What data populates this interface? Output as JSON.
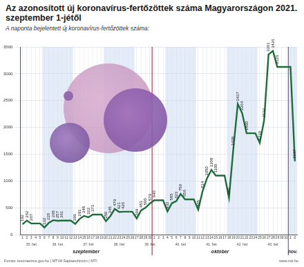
{
  "chart_data": {
    "type": "line",
    "title": "Az azonosított új koronavírus-fertőzöttek száma Magyarországon 2021. szeptember 1-jétől",
    "subtitle": "A naponta bejelentett új koronavírus-fertőzöttek száma:",
    "source": "Forrás: koronavirus.gov.hu | MTVA Sajtóarchívum | MTI",
    "credit": "www.mti.hu",
    "categories": [
      "1",
      "2",
      "3",
      "4",
      "5",
      "6",
      "7",
      "8",
      "9",
      "10",
      "11",
      "12",
      "13",
      "14",
      "15",
      "16",
      "17",
      "18",
      "19",
      "20",
      "21",
      "22",
      "23",
      "24",
      "25",
      "26",
      "27",
      "28",
      "29",
      "30",
      "1",
      "2",
      "3",
      "4",
      "5",
      "6",
      "7",
      "8",
      "9",
      "10",
      "11",
      "12",
      "13",
      "14",
      "15",
      "16",
      "17",
      "18",
      "19",
      "20",
      "21",
      "22",
      "23",
      "24",
      "25",
      "26",
      "27",
      "28",
      "29",
      "30",
      "31",
      "1",
      "2"
    ],
    "week_labels": [
      "35. hét",
      "35. hét",
      "35. hét",
      "35. hét",
      "35. hét",
      "36. hét",
      "36. hét",
      "36. hét",
      "36. hét",
      "36. hét",
      "36. hét",
      "36. hét",
      "37. hét",
      "37. hét",
      "37. hét",
      "37. hét",
      "37. hét",
      "37. hét",
      "37. hét",
      "38. hét",
      "38. hét",
      "38. hét",
      "38. hét",
      "38. hét",
      "38. hét",
      "38. hét",
      "39. hét",
      "39. hét",
      "39. hét",
      "39. hét",
      "39. hét",
      "39. hét",
      "39. hét",
      "40. hét",
      "40. hét",
      "40. hét",
      "40. hét",
      "40. hét",
      "40. hét",
      "40. hét",
      "41. hét",
      "41. hét",
      "41. hét",
      "41. hét",
      "41. hét",
      "41. hét",
      "41. hét",
      "42. hét",
      "42. hét",
      "42. hét",
      "42. hét",
      "42. hét",
      "42. hét",
      "42. hét",
      "43. hét",
      "43. hét",
      "43. hét",
      "43. hét",
      "43. hét",
      "43. hét",
      "43. hét",
      null,
      null
    ],
    "month_labels": [
      "szeptember",
      "szeptember",
      "szeptember",
      "szeptember",
      "szeptember",
      "szeptember",
      "szeptember",
      "szeptember",
      "szeptember",
      "szeptember",
      "szeptember",
      "szeptember",
      "szeptember",
      "szeptember",
      "szeptember",
      "szeptember",
      "szeptember",
      "szeptember",
      "szeptember",
      "szeptember",
      "szeptember",
      "szeptember",
      "szeptember",
      "szeptember",
      "szeptember",
      "szeptember",
      "szeptember",
      "szeptember",
      "szeptember",
      "szeptember",
      "október",
      "október",
      "október",
      "október",
      "október",
      "október",
      "október",
      "október",
      "október",
      "október",
      "október",
      "október",
      "október",
      "október",
      "október",
      "október",
      "október",
      "október",
      "október",
      "október",
      "október",
      "október",
      "október",
      "október",
      "október",
      "október",
      "október",
      "október",
      "október",
      "október",
      "október",
      "nov.",
      "nov."
    ],
    "values": [
      192,
      262,
      207,
      207,
      207,
      132,
      220,
      268,
      257,
      261,
      261,
      261,
      199,
      291,
      348,
      322,
      373,
      373,
      373,
      250,
      345,
      479,
      421,
      426,
      426,
      426,
      299,
      451,
      500,
      579,
      640,
      640,
      640,
      432,
      585,
      623,
      759,
      656,
      656,
      656,
      465,
      814,
      1050,
      1208,
      1100,
      1100,
      1100,
      689,
      1608,
      2437,
      2264,
      1890,
      1890,
      1890,
      1710,
      2132,
      3361,
      3426,
      3126,
      3126,
      3126,
      3126,
      1367
    ],
    "value_labels": [
      "192",
      "262",
      "207",
      null,
      null,
      "132",
      "220",
      "268",
      "257",
      "261",
      null,
      null,
      "199",
      "291",
      "348",
      "322",
      "373",
      null,
      null,
      "250",
      "345",
      "479",
      "421",
      "426",
      null,
      null,
      "299",
      "451",
      "500",
      "579",
      "640",
      null,
      null,
      "432",
      "585",
      "623",
      "759",
      "656",
      null,
      null,
      "465",
      "814",
      "1050",
      "1208",
      "1100",
      null,
      null,
      "689",
      "1608",
      "2437",
      "2264",
      "1890",
      null,
      null,
      "1710",
      "2132",
      "3361",
      "3426",
      "3126",
      null,
      null,
      null,
      "1367"
    ],
    "color": "#1f6b3a",
    "ylim": [
      0,
      3500
    ],
    "yticks": [
      0,
      500,
      1000,
      1500,
      2000,
      2500,
      3000,
      3500
    ],
    "grid": true,
    "data_labels": true
  }
}
